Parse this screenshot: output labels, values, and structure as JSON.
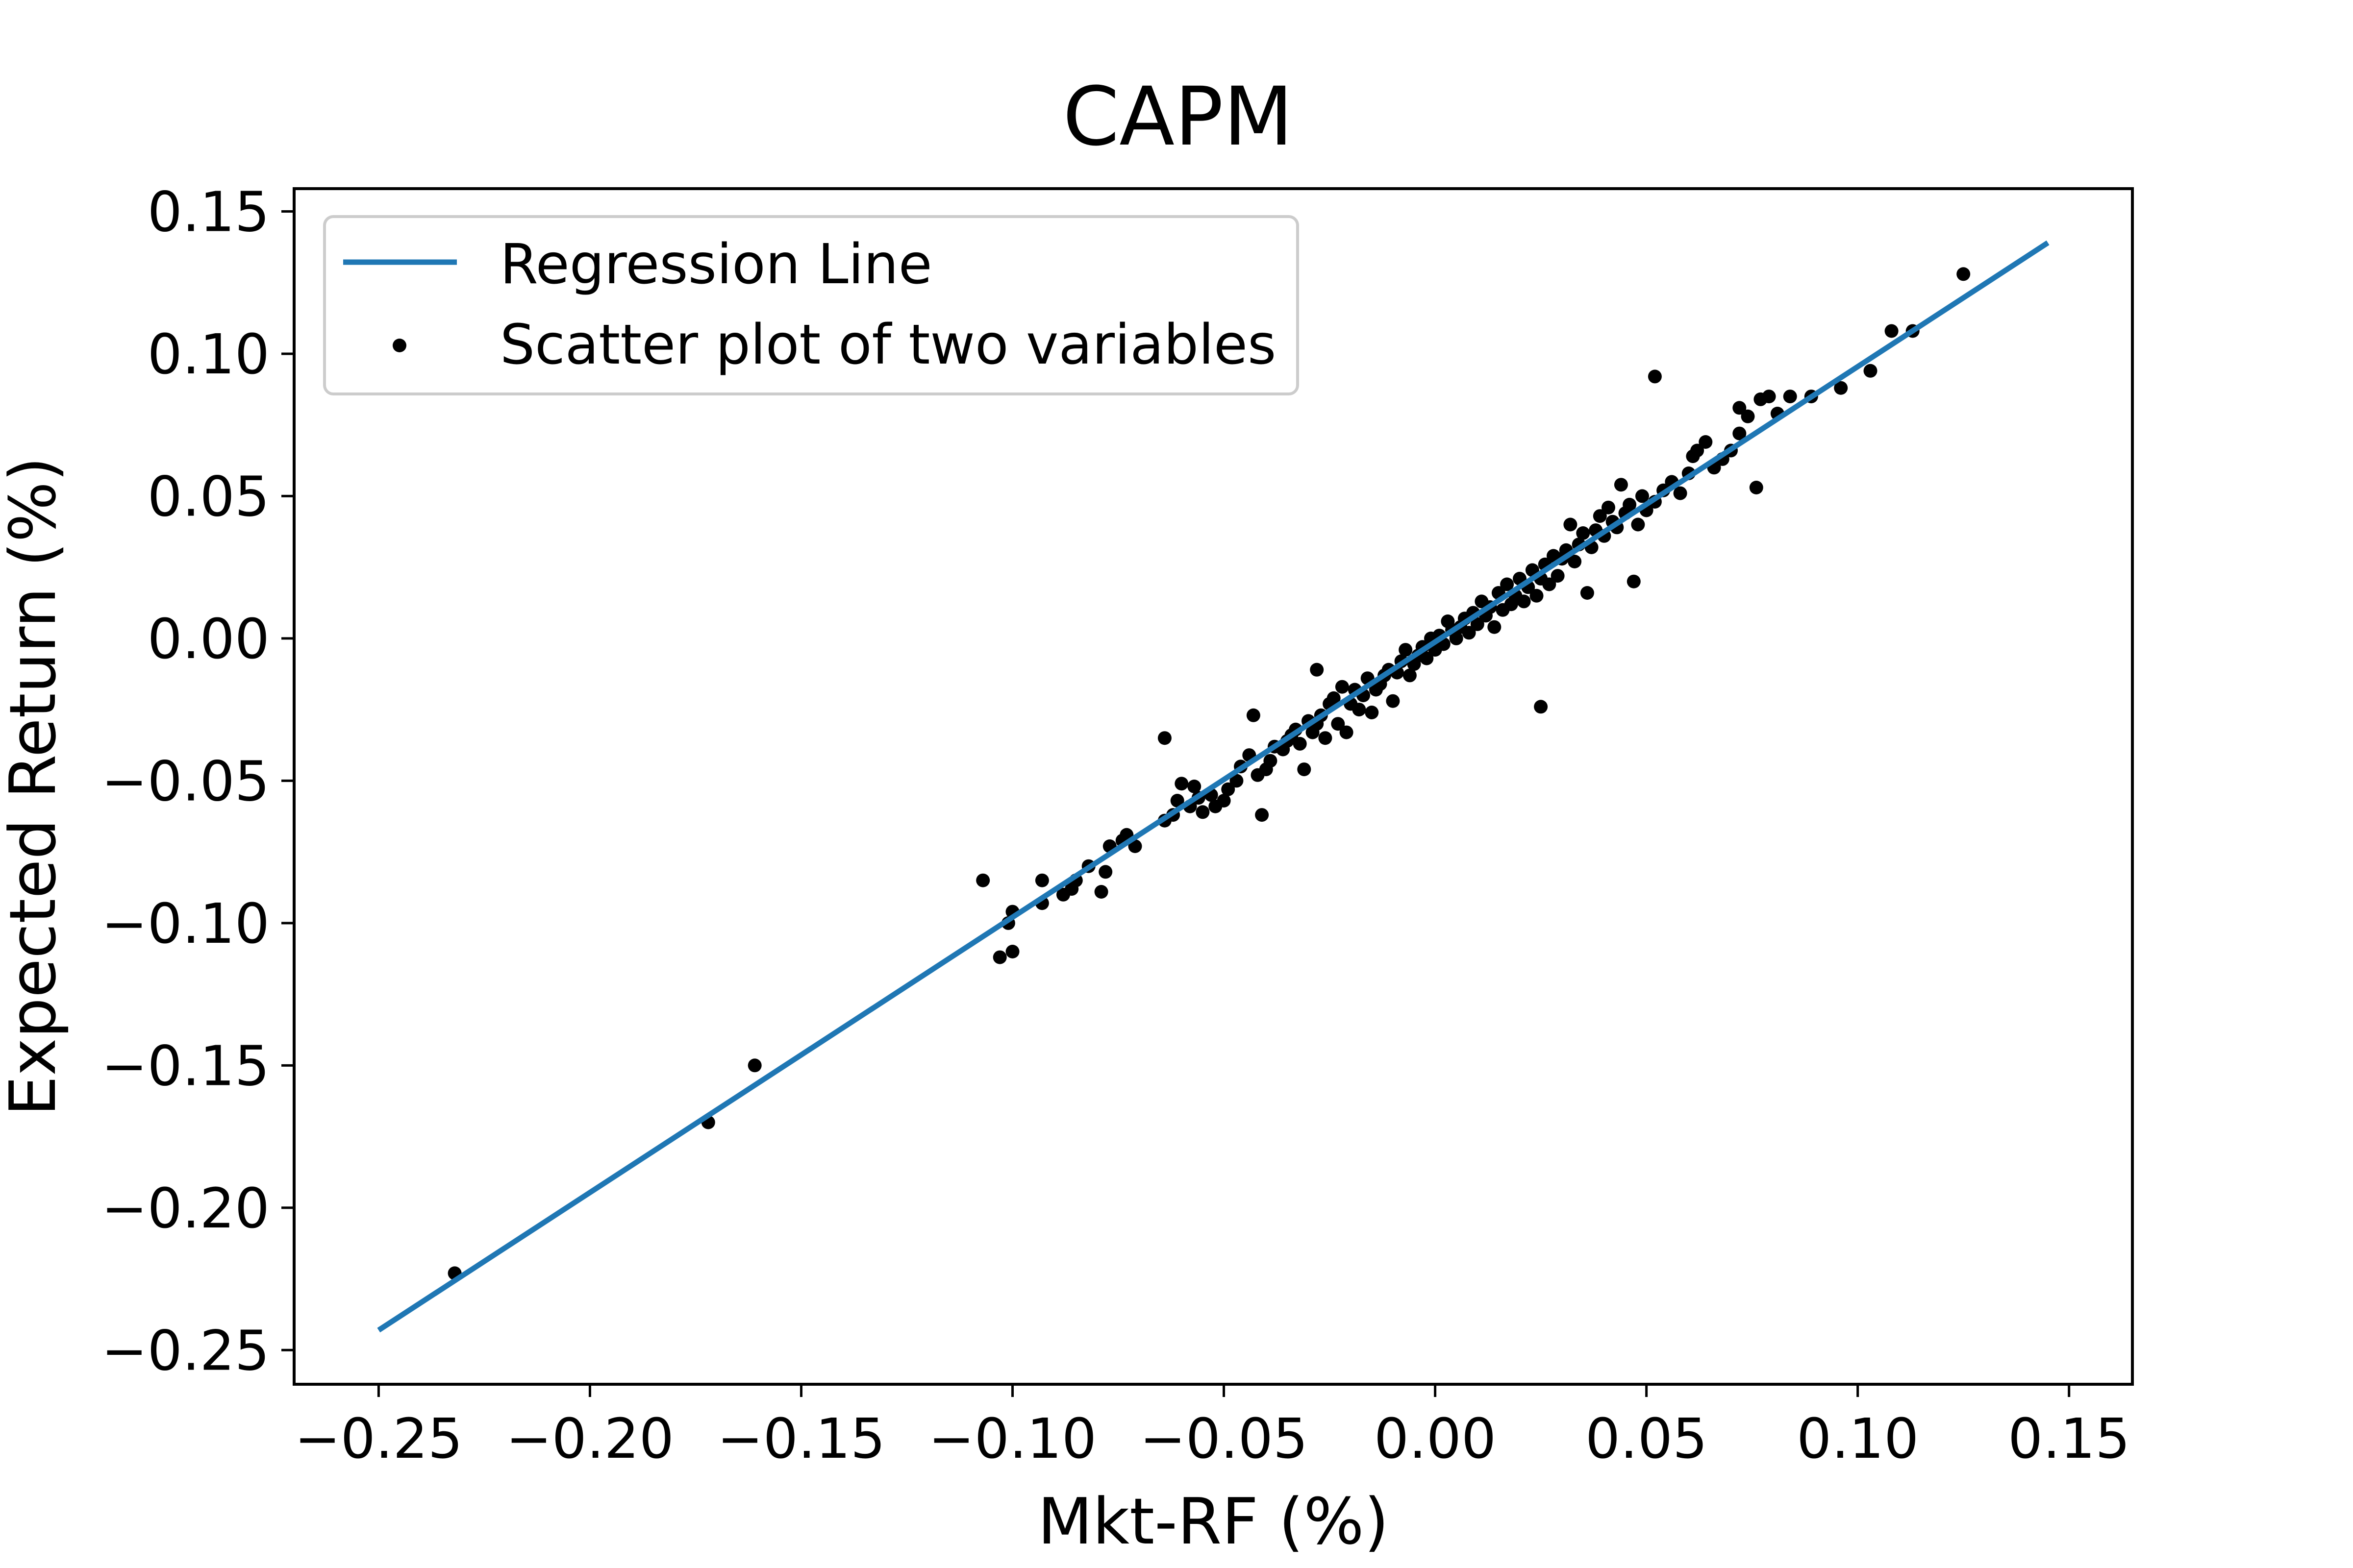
{
  "chart_data": {
    "type": "scatter",
    "title": "CAPM",
    "xlabel": "Mkt-RF (%)",
    "ylabel": "Expected Return (%)",
    "xlim": [
      -0.27,
      0.165
    ],
    "ylim": [
      -0.262,
      0.158
    ],
    "xticks": [
      -0.25,
      -0.2,
      -0.15,
      -0.1,
      -0.05,
      0.0,
      0.05,
      0.1,
      0.15
    ],
    "xtick_labels": [
      "−0.25",
      "−0.20",
      "−0.15",
      "−0.10",
      "−0.05",
      "0.00",
      "0.05",
      "0.10",
      "0.15"
    ],
    "yticks": [
      -0.25,
      -0.2,
      -0.15,
      -0.1,
      -0.05,
      0.0,
      0.05,
      0.1,
      0.15
    ],
    "ytick_labels": [
      "−0.25",
      "−0.20",
      "−0.15",
      "−0.10",
      "−0.05",
      "0.00",
      "0.05",
      "0.10",
      "0.15"
    ],
    "grid": false,
    "legend_position": "top-left",
    "legend": {
      "line_label": "Regression Line",
      "scatter_label": "Scatter plot of two variables"
    },
    "colors": {
      "line": "#1f77b4",
      "points": "#000000"
    },
    "regression_line": {
      "x": [
        -0.25,
        0.145
      ],
      "y": [
        -0.243,
        0.139
      ]
    },
    "points": [
      [
        -0.232,
        -0.223
      ],
      [
        -0.172,
        -0.17
      ],
      [
        -0.161,
        -0.15
      ],
      [
        -0.107,
        -0.085
      ],
      [
        -0.103,
        -0.112
      ],
      [
        -0.101,
        -0.1
      ],
      [
        -0.1,
        -0.11
      ],
      [
        -0.1,
        -0.096
      ],
      [
        -0.093,
        -0.093
      ],
      [
        -0.093,
        -0.085
      ],
      [
        -0.088,
        -0.09
      ],
      [
        -0.086,
        -0.088
      ],
      [
        -0.085,
        -0.085
      ],
      [
        -0.082,
        -0.08
      ],
      [
        -0.079,
        -0.089
      ],
      [
        -0.078,
        -0.082
      ],
      [
        -0.077,
        -0.073
      ],
      [
        -0.074,
        -0.071
      ],
      [
        -0.073,
        -0.069
      ],
      [
        -0.071,
        -0.073
      ],
      [
        -0.064,
        -0.064
      ],
      [
        -0.064,
        -0.035
      ],
      [
        -0.062,
        -0.062
      ],
      [
        -0.061,
        -0.057
      ],
      [
        -0.06,
        -0.051
      ],
      [
        -0.058,
        -0.059
      ],
      [
        -0.057,
        -0.052
      ],
      [
        -0.056,
        -0.056
      ],
      [
        -0.055,
        -0.061
      ],
      [
        -0.053,
        -0.055
      ],
      [
        -0.052,
        -0.059
      ],
      [
        -0.05,
        -0.057
      ],
      [
        -0.049,
        -0.053
      ],
      [
        -0.047,
        -0.05
      ],
      [
        -0.046,
        -0.045
      ],
      [
        -0.044,
        -0.041
      ],
      [
        -0.043,
        -0.027
      ],
      [
        -0.042,
        -0.048
      ],
      [
        -0.041,
        -0.062
      ],
      [
        -0.04,
        -0.046
      ],
      [
        -0.039,
        -0.043
      ],
      [
        -0.038,
        -0.038
      ],
      [
        -0.036,
        -0.039
      ],
      [
        -0.035,
        -0.036
      ],
      [
        -0.034,
        -0.034
      ],
      [
        -0.033,
        -0.032
      ],
      [
        -0.032,
        -0.037
      ],
      [
        -0.031,
        -0.046
      ],
      [
        -0.03,
        -0.029
      ],
      [
        -0.029,
        -0.033
      ],
      [
        -0.028,
        -0.03
      ],
      [
        -0.028,
        -0.011
      ],
      [
        -0.027,
        -0.027
      ],
      [
        -0.026,
        -0.035
      ],
      [
        -0.025,
        -0.023
      ],
      [
        -0.024,
        -0.021
      ],
      [
        -0.023,
        -0.03
      ],
      [
        -0.022,
        -0.017
      ],
      [
        -0.021,
        -0.033
      ],
      [
        -0.02,
        -0.023
      ],
      [
        -0.019,
        -0.018
      ],
      [
        -0.018,
        -0.025
      ],
      [
        -0.017,
        -0.02
      ],
      [
        -0.016,
        -0.014
      ],
      [
        -0.015,
        -0.026
      ],
      [
        -0.014,
        -0.018
      ],
      [
        -0.013,
        -0.016
      ],
      [
        -0.012,
        -0.013
      ],
      [
        -0.011,
        -0.011
      ],
      [
        -0.01,
        -0.022
      ],
      [
        -0.009,
        -0.012
      ],
      [
        -0.008,
        -0.008
      ],
      [
        -0.007,
        -0.004
      ],
      [
        -0.006,
        -0.013
      ],
      [
        -0.005,
        -0.009
      ],
      [
        -0.004,
        -0.006
      ],
      [
        -0.003,
        -0.003
      ],
      [
        -0.002,
        -0.007
      ],
      [
        -0.001,
        0.0
      ],
      [
        0.0,
        -0.004
      ],
      [
        0.001,
        0.001
      ],
      [
        0.002,
        -0.002
      ],
      [
        0.003,
        0.006
      ],
      [
        0.004,
        0.003
      ],
      [
        0.005,
        0.0
      ],
      [
        0.006,
        0.004
      ],
      [
        0.007,
        0.007
      ],
      [
        0.008,
        0.002
      ],
      [
        0.009,
        0.009
      ],
      [
        0.01,
        0.005
      ],
      [
        0.011,
        0.013
      ],
      [
        0.012,
        0.008
      ],
      [
        0.013,
        0.011
      ],
      [
        0.014,
        0.004
      ],
      [
        0.015,
        0.016
      ],
      [
        0.016,
        0.01
      ],
      [
        0.017,
        0.019
      ],
      [
        0.018,
        0.012
      ],
      [
        0.019,
        0.015
      ],
      [
        0.02,
        0.021
      ],
      [
        0.021,
        0.013
      ],
      [
        0.022,
        0.018
      ],
      [
        0.023,
        0.024
      ],
      [
        0.024,
        0.015
      ],
      [
        0.025,
        0.021
      ],
      [
        0.025,
        -0.024
      ],
      [
        0.026,
        0.026
      ],
      [
        0.027,
        0.019
      ],
      [
        0.028,
        0.029
      ],
      [
        0.029,
        0.022
      ],
      [
        0.03,
        0.028
      ],
      [
        0.031,
        0.031
      ],
      [
        0.032,
        0.04
      ],
      [
        0.033,
        0.027
      ],
      [
        0.034,
        0.033
      ],
      [
        0.035,
        0.037
      ],
      [
        0.036,
        0.016
      ],
      [
        0.037,
        0.032
      ],
      [
        0.038,
        0.038
      ],
      [
        0.039,
        0.043
      ],
      [
        0.04,
        0.036
      ],
      [
        0.041,
        0.046
      ],
      [
        0.042,
        0.041
      ],
      [
        0.043,
        0.039
      ],
      [
        0.044,
        0.054
      ],
      [
        0.045,
        0.044
      ],
      [
        0.046,
        0.047
      ],
      [
        0.047,
        0.02
      ],
      [
        0.048,
        0.04
      ],
      [
        0.049,
        0.05
      ],
      [
        0.05,
        0.045
      ],
      [
        0.052,
        0.048
      ],
      [
        0.052,
        0.092
      ],
      [
        0.054,
        0.052
      ],
      [
        0.056,
        0.055
      ],
      [
        0.058,
        0.051
      ],
      [
        0.06,
        0.058
      ],
      [
        0.061,
        0.064
      ],
      [
        0.062,
        0.066
      ],
      [
        0.064,
        0.069
      ],
      [
        0.066,
        0.06
      ],
      [
        0.068,
        0.063
      ],
      [
        0.07,
        0.066
      ],
      [
        0.072,
        0.072
      ],
      [
        0.072,
        0.081
      ],
      [
        0.074,
        0.078
      ],
      [
        0.076,
        0.053
      ],
      [
        0.077,
        0.084
      ],
      [
        0.079,
        0.085
      ],
      [
        0.081,
        0.079
      ],
      [
        0.084,
        0.085
      ],
      [
        0.089,
        0.085
      ],
      [
        0.096,
        0.088
      ],
      [
        0.103,
        0.094
      ],
      [
        0.108,
        0.108
      ],
      [
        0.113,
        0.108
      ],
      [
        0.125,
        0.128
      ]
    ]
  }
}
